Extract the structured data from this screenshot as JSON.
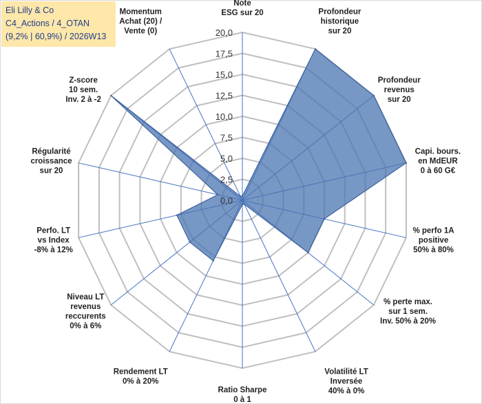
{
  "header": {
    "company": "Eli Lilly & Co",
    "portfolio": "C4_Actions / 4_OTAN",
    "stats": "(9,2% | 60,9%) / 2026W13"
  },
  "colors": {
    "fill": "#4a74b2",
    "fill_opacity": "0.75",
    "stroke": "#3e63a0",
    "axis": "#4472c4",
    "grid": "#bfbfbf",
    "info_bg": "#fde7a9"
  },
  "chart_data": {
    "type": "radar",
    "title": "",
    "rmin": 0,
    "rmax": 20,
    "tick_labels": [
      "0,0",
      "2,5",
      "5,0",
      "7,5",
      "10,0",
      "12,5",
      "15,0",
      "17,5",
      "20,0"
    ],
    "axes": [
      [
        "Note",
        "ESG sur 20"
      ],
      [
        "Profondeur",
        "historique",
        "sur 20"
      ],
      [
        "Profondeur",
        "revenus",
        "sur 20"
      ],
      [
        "Capi. bours.",
        "en MdEUR",
        "0 à 60 G€"
      ],
      [
        "% perfo 1A",
        "positive",
        "50% à 80%"
      ],
      [
        "% perte max.",
        "sur 1 sem.",
        "Inv. 50% à 20%"
      ],
      [
        "Volatilité LT",
        "Inversée",
        "40% à 0%"
      ],
      [
        "Ratio Sharpe",
        "0 à 1"
      ],
      [
        "Rendement LT",
        "0% à 20%"
      ],
      [
        "Niveau LT",
        "revenus",
        "reccurents",
        "0% à 6%"
      ],
      [
        "Perfo. LT",
        "vs Index",
        "-8% à 12%"
      ],
      [
        "Régularité",
        "croissance",
        "sur 20"
      ],
      [
        "Z-score",
        "10 sem.",
        "Inv. 2 à -2"
      ],
      [
        "Momentum",
        "Achat (20) /",
        "Vente (0)"
      ]
    ],
    "series": [
      {
        "name": "Eli Lilly & Co",
        "values": [
          0.5,
          20,
          20,
          20,
          10,
          10,
          0.5,
          0.5,
          8,
          8,
          8,
          3,
          20,
          0.5
        ]
      }
    ]
  }
}
